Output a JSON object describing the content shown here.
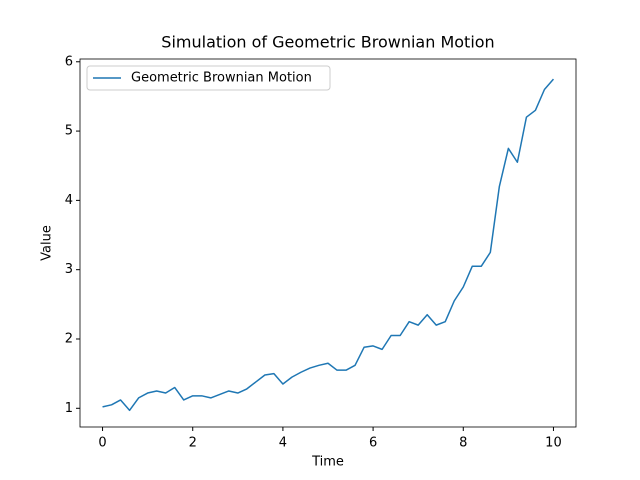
{
  "chart_data": {
    "type": "line",
    "title": "Simulation of Geometric Brownian Motion",
    "x_label": "Time",
    "y_label": "Value",
    "x": [
      0,
      0.2,
      0.4,
      0.6,
      0.8,
      1.0,
      1.2,
      1.4,
      1.6,
      1.8,
      2.0,
      2.2,
      2.4,
      2.6,
      2.8,
      3.0,
      3.2,
      3.4,
      3.6,
      3.8,
      4.0,
      4.2,
      4.4,
      4.6,
      4.8,
      5.0,
      5.2,
      5.4,
      5.6,
      5.8,
      6.0,
      6.2,
      6.4,
      6.6,
      6.8,
      7.0,
      7.2,
      7.4,
      7.6,
      7.8,
      8.0,
      8.2,
      8.4,
      8.6,
      8.8,
      9.0,
      9.2,
      9.4,
      9.6,
      9.8,
      10.0
    ],
    "series": [
      {
        "name": "Geometric Brownian Motion",
        "color": "#1f77b4",
        "values": [
          1.02,
          1.05,
          1.12,
          0.97,
          1.15,
          1.22,
          1.25,
          1.22,
          1.3,
          1.12,
          1.18,
          1.18,
          1.15,
          1.2,
          1.25,
          1.22,
          1.28,
          1.38,
          1.48,
          1.5,
          1.35,
          1.45,
          1.52,
          1.58,
          1.62,
          1.65,
          1.55,
          1.55,
          1.62,
          1.88,
          1.9,
          1.85,
          2.05,
          2.05,
          2.25,
          2.2,
          2.35,
          2.2,
          2.25,
          2.55,
          2.75,
          3.05,
          3.05,
          3.25,
          4.2,
          4.75,
          4.55,
          5.2,
          5.3,
          5.6,
          5.75
        ]
      }
    ],
    "xlim": [
      -0.5,
      10.5
    ],
    "xticks": [
      0,
      2,
      4,
      6,
      8,
      10
    ],
    "ylim": [
      0.73,
      6.04
    ],
    "yticks": [
      1,
      2,
      3,
      4,
      5,
      6
    ],
    "legend": "upper left"
  }
}
